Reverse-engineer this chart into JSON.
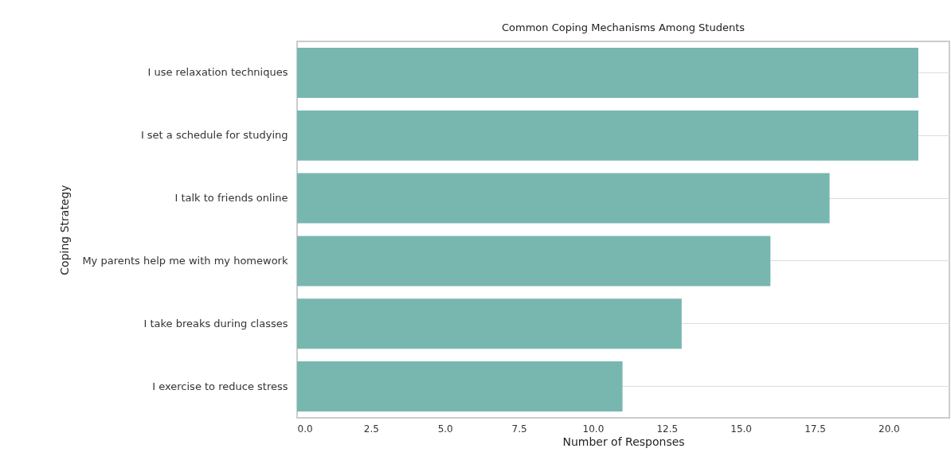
{
  "chart_data": {
    "type": "bar",
    "orientation": "horizontal",
    "title": "Common Coping Mechanisms Among Students",
    "xlabel": "Number of Responses",
    "ylabel": "Coping Strategy",
    "categories": [
      "I use relaxation techniques",
      "I set a schedule for studying",
      "I talk to friends online",
      "My parents help me with my homework",
      "I take breaks during classes",
      "I exercise to reduce stress"
    ],
    "values": [
      21,
      21,
      18,
      16,
      13,
      11
    ],
    "color": "#78b7b0",
    "xlim": [
      0,
      22.05
    ],
    "xticks": [
      {
        "value": 0,
        "label": "0.0"
      },
      {
        "value": 2.5,
        "label": "2.5"
      },
      {
        "value": 5,
        "label": "5.0"
      },
      {
        "value": 7.5,
        "label": "7.5"
      },
      {
        "value": 10,
        "label": "10.0"
      },
      {
        "value": 12.5,
        "label": "12.5"
      },
      {
        "value": 15,
        "label": "15.0"
      },
      {
        "value": 17.5,
        "label": "17.5"
      },
      {
        "value": 20,
        "label": "20.0"
      }
    ],
    "grid": "y"
  }
}
